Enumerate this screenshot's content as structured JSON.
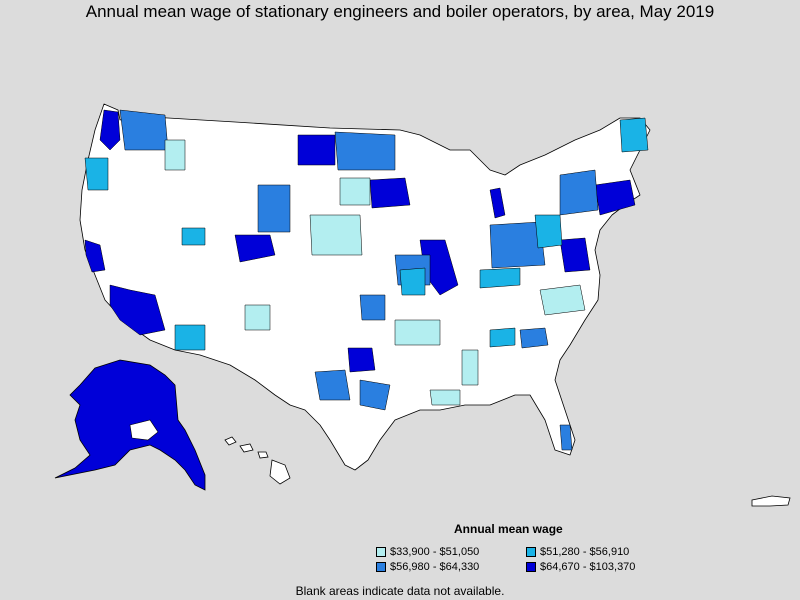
{
  "title": "Annual mean wage of stationary engineers and boiler operators, by area, May 2019",
  "legend": {
    "title": "Annual mean wage",
    "items": [
      {
        "label": "$33,900 - $51,050",
        "color": "#b3eef0"
      },
      {
        "label": "$51,280 - $56,910",
        "color": "#1ab3e6"
      },
      {
        "label": "$56,980 - $64,330",
        "color": "#2a7fe0"
      },
      {
        "label": "$64,670 - $103,370",
        "color": "#0000d8"
      }
    ]
  },
  "footnote": "Blank areas indicate data not available.",
  "colors": {
    "background": "#dcdcdc",
    "land": "#ffffff",
    "border": "#000000"
  }
}
